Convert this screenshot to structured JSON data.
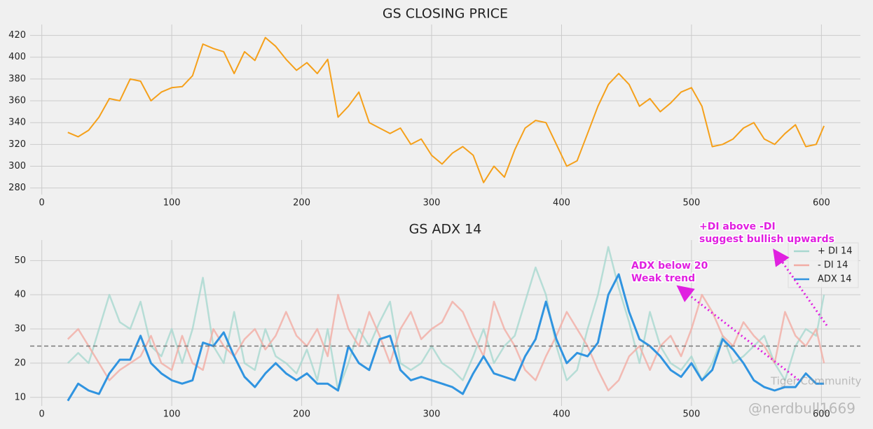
{
  "chart_data": [
    {
      "type": "line",
      "title": "GS CLOSING PRICE",
      "x": [
        20,
        28,
        36,
        44,
        52,
        60,
        68,
        76,
        84,
        92,
        100,
        108,
        116,
        124,
        132,
        140,
        148,
        156,
        164,
        172,
        180,
        188,
        196,
        204,
        212,
        220,
        228,
        236,
        244,
        252,
        260,
        268,
        276,
        284,
        292,
        300,
        308,
        316,
        324,
        332,
        340,
        348,
        356,
        364,
        372,
        380,
        388,
        396,
        404,
        412,
        420,
        428,
        436,
        444,
        452,
        460,
        468,
        476,
        484,
        492,
        500,
        508,
        516,
        524,
        532,
        540,
        548,
        556,
        564,
        572,
        580,
        588,
        596,
        602
      ],
      "series": [
        {
          "name": "Close",
          "color": "#f5a01a",
          "values": [
            331,
            327,
            333,
            345,
            362,
            360,
            380,
            378,
            360,
            368,
            372,
            373,
            383,
            412,
            408,
            405,
            385,
            405,
            397,
            418,
            410,
            398,
            388,
            395,
            385,
            398,
            345,
            355,
            368,
            340,
            335,
            330,
            335,
            320,
            325,
            310,
            302,
            312,
            318,
            310,
            285,
            300,
            290,
            315,
            335,
            342,
            340,
            320,
            300,
            305,
            330,
            355,
            375,
            385,
            375,
            355,
            362,
            350,
            358,
            368,
            372,
            355,
            318,
            320,
            325,
            335,
            340,
            325,
            320,
            330,
            338,
            318,
            320,
            337
          ]
        }
      ],
      "xlim": [
        -9,
        630
      ],
      "xticks": [
        0,
        100,
        200,
        300,
        400,
        500,
        600
      ],
      "ylim": [
        274,
        430
      ],
      "yticks": [
        280,
        300,
        320,
        340,
        360,
        380,
        400,
        420
      ],
      "grid": true
    },
    {
      "type": "line",
      "title": "GS ADX 14",
      "x": [
        20,
        28,
        36,
        44,
        52,
        60,
        68,
        76,
        84,
        92,
        100,
        108,
        116,
        124,
        132,
        140,
        148,
        156,
        164,
        172,
        180,
        188,
        196,
        204,
        212,
        220,
        228,
        236,
        244,
        252,
        260,
        268,
        276,
        284,
        292,
        300,
        308,
        316,
        324,
        332,
        340,
        348,
        356,
        364,
        372,
        380,
        388,
        396,
        404,
        412,
        420,
        428,
        436,
        444,
        452,
        460,
        468,
        476,
        484,
        492,
        500,
        508,
        516,
        524,
        532,
        540,
        548,
        556,
        564,
        572,
        580,
        588,
        596,
        602
      ],
      "series": [
        {
          "name": "+ DI 14",
          "color": "#a8d8d0",
          "values": [
            20,
            23,
            20,
            30,
            40,
            32,
            30,
            38,
            25,
            22,
            30,
            20,
            30,
            45,
            25,
            20,
            35,
            20,
            18,
            30,
            22,
            20,
            17,
            24,
            15,
            30,
            12,
            20,
            30,
            25,
            32,
            38,
            20,
            18,
            20,
            25,
            20,
            18,
            15,
            22,
            30,
            20,
            25,
            28,
            38,
            48,
            40,
            25,
            15,
            18,
            30,
            40,
            54,
            42,
            32,
            20,
            35,
            25,
            20,
            18,
            22,
            15,
            20,
            28,
            20,
            22,
            25,
            28,
            20,
            15,
            25,
            30,
            28,
            40
          ]
        },
        {
          "name": "- DI 14",
          "color": "#f2aca4",
          "values": [
            27,
            30,
            25,
            20,
            15,
            18,
            20,
            22,
            28,
            20,
            18,
            28,
            20,
            18,
            30,
            25,
            22,
            27,
            30,
            24,
            28,
            35,
            28,
            25,
            30,
            22,
            40,
            30,
            25,
            35,
            28,
            20,
            30,
            35,
            27,
            30,
            32,
            38,
            35,
            28,
            22,
            38,
            30,
            25,
            18,
            15,
            22,
            28,
            35,
            30,
            25,
            18,
            12,
            15,
            22,
            25,
            18,
            25,
            28,
            22,
            30,
            40,
            35,
            28,
            25,
            32,
            28,
            25,
            20,
            35,
            28,
            25,
            30,
            20
          ]
        },
        {
          "name": "ADX 14",
          "color": "#3094e0",
          "values": [
            9,
            14,
            12,
            11,
            17,
            21,
            21,
            28,
            20,
            17,
            15,
            14,
            15,
            26,
            25,
            29,
            22,
            16,
            13,
            17,
            20,
            17,
            15,
            17,
            14,
            14,
            12,
            25,
            20,
            18,
            27,
            28,
            18,
            15,
            16,
            15,
            14,
            13,
            11,
            17,
            22,
            17,
            16,
            15,
            22,
            27,
            38,
            27,
            20,
            23,
            22,
            26,
            40,
            46,
            35,
            27,
            25,
            22,
            18,
            16,
            20,
            15,
            18,
            27,
            24,
            20,
            15,
            13,
            12,
            13,
            13,
            17,
            14,
            14
          ]
        }
      ],
      "hline": 25,
      "xlim": [
        -9,
        630
      ],
      "xticks": [
        0,
        100,
        200,
        300,
        400,
        500,
        600
      ],
      "ylim": [
        7.5,
        56
      ],
      "yticks": [
        10,
        20,
        30,
        40,
        50
      ],
      "grid": true,
      "legend": "upper right",
      "annotations": [
        {
          "lines": [
            "ADX below 20",
            "Weak trend"
          ]
        },
        {
          "lines": [
            "+DI above -DI",
            "suggest bullish upwards"
          ]
        }
      ],
      "watermarks": [
        "Tiger Community",
        "@nerdbull1669"
      ]
    }
  ]
}
